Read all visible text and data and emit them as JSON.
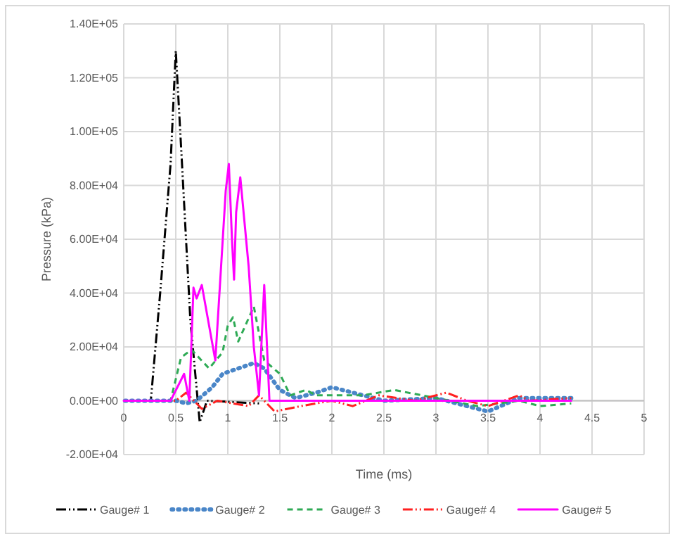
{
  "chart_data": {
    "type": "line",
    "xlabel": "Time (ms)",
    "ylabel": "Pressure (kPa)",
    "xlim": [
      0,
      5
    ],
    "xticks": [
      0,
      0.5,
      1,
      1.5,
      2,
      2.5,
      3,
      3.5,
      4,
      4.5,
      5
    ],
    "ylim": [
      -20000,
      140000
    ],
    "yticks": [
      {
        "value": -20000,
        "label": "-2.00E+04"
      },
      {
        "value": 0,
        "label": "0.00E+00"
      },
      {
        "value": 20000,
        "label": "2.00E+04"
      },
      {
        "value": 40000,
        "label": "4.00E+04"
      },
      {
        "value": 60000,
        "label": "6.00E+04"
      },
      {
        "value": 80000,
        "label": "8.00E+04"
      },
      {
        "value": 100000,
        "label": "1.00E+05"
      },
      {
        "value": 120000,
        "label": "1.20E+05"
      },
      {
        "value": 140000,
        "label": "1.40E+05"
      }
    ],
    "grid": true,
    "legend": "bottom",
    "marker": "none",
    "series": [
      {
        "name": "Gauge# 1",
        "color": "#000000",
        "line_style": "dashdot",
        "x": [
          0,
          0.26,
          0.35,
          0.45,
          0.5,
          0.55,
          0.64,
          0.73,
          0.8,
          1.3
        ],
        "values": [
          0,
          0,
          40000,
          88000,
          130000,
          95000,
          30000,
          -8000,
          0,
          -1000
        ]
      },
      {
        "name": "Gauge# 2",
        "color": "#4a86c8",
        "line_style": "dotted",
        "x": [
          0,
          0.5,
          0.6,
          0.7,
          0.85,
          0.95,
          1.1,
          1.25,
          1.35,
          1.5,
          1.65,
          1.85,
          2,
          2.2,
          2.5,
          3,
          3.5,
          3.8,
          4.3
        ],
        "values": [
          0,
          0,
          -1000,
          0,
          5000,
          10000,
          12000,
          14000,
          12000,
          4000,
          1000,
          3000,
          5000,
          3000,
          0,
          1000,
          -4000,
          1000,
          1000
        ]
      },
      {
        "name": "Gauge# 3",
        "color": "#2eaa55",
        "line_style": "dashed",
        "x": [
          0,
          0.45,
          0.55,
          0.65,
          0.82,
          0.95,
          1,
          1.05,
          1.1,
          1.25,
          1.35,
          1.5,
          1.6,
          1.75,
          1.85,
          2.3,
          2.6,
          3,
          3.4,
          3.8,
          4,
          4.3
        ],
        "values": [
          0,
          0,
          16000,
          19000,
          12000,
          18000,
          28000,
          31000,
          22000,
          35000,
          15000,
          10000,
          2000,
          4000,
          2000,
          2000,
          4000,
          1000,
          -2000,
          0,
          -2000,
          -1000
        ]
      },
      {
        "name": "Gauge# 4",
        "color": "#ff2020",
        "line_style": "dashdot",
        "x": [
          0,
          0.5,
          0.6,
          0.75,
          0.9,
          1.2,
          1.3,
          1.45,
          1.7,
          2,
          2.2,
          2.45,
          2.8,
          3.1,
          3.3,
          3.5,
          3.8,
          3.9,
          4.3
        ],
        "values": [
          0,
          0,
          3000,
          -3000,
          0,
          -2000,
          2000,
          -4000,
          -2000,
          0,
          -2000,
          2000,
          0,
          3000,
          0,
          -2000,
          2000,
          0,
          1000
        ]
      },
      {
        "name": "Gauge# 5",
        "color": "#ff00ff",
        "line_style": "solid",
        "x": [
          0,
          0.45,
          0.58,
          0.63,
          0.67,
          0.7,
          0.75,
          0.88,
          0.98,
          1.01,
          1.04,
          1.06,
          1.08,
          1.12,
          1.2,
          1.25,
          1.3,
          1.35,
          1.4,
          2,
          3,
          4.3
        ],
        "values": [
          0,
          0,
          10000,
          0,
          42000,
          38000,
          43000,
          15000,
          78000,
          88000,
          60000,
          45000,
          70000,
          83000,
          50000,
          20000,
          2000,
          43000,
          0,
          0,
          0,
          0
        ]
      }
    ]
  }
}
